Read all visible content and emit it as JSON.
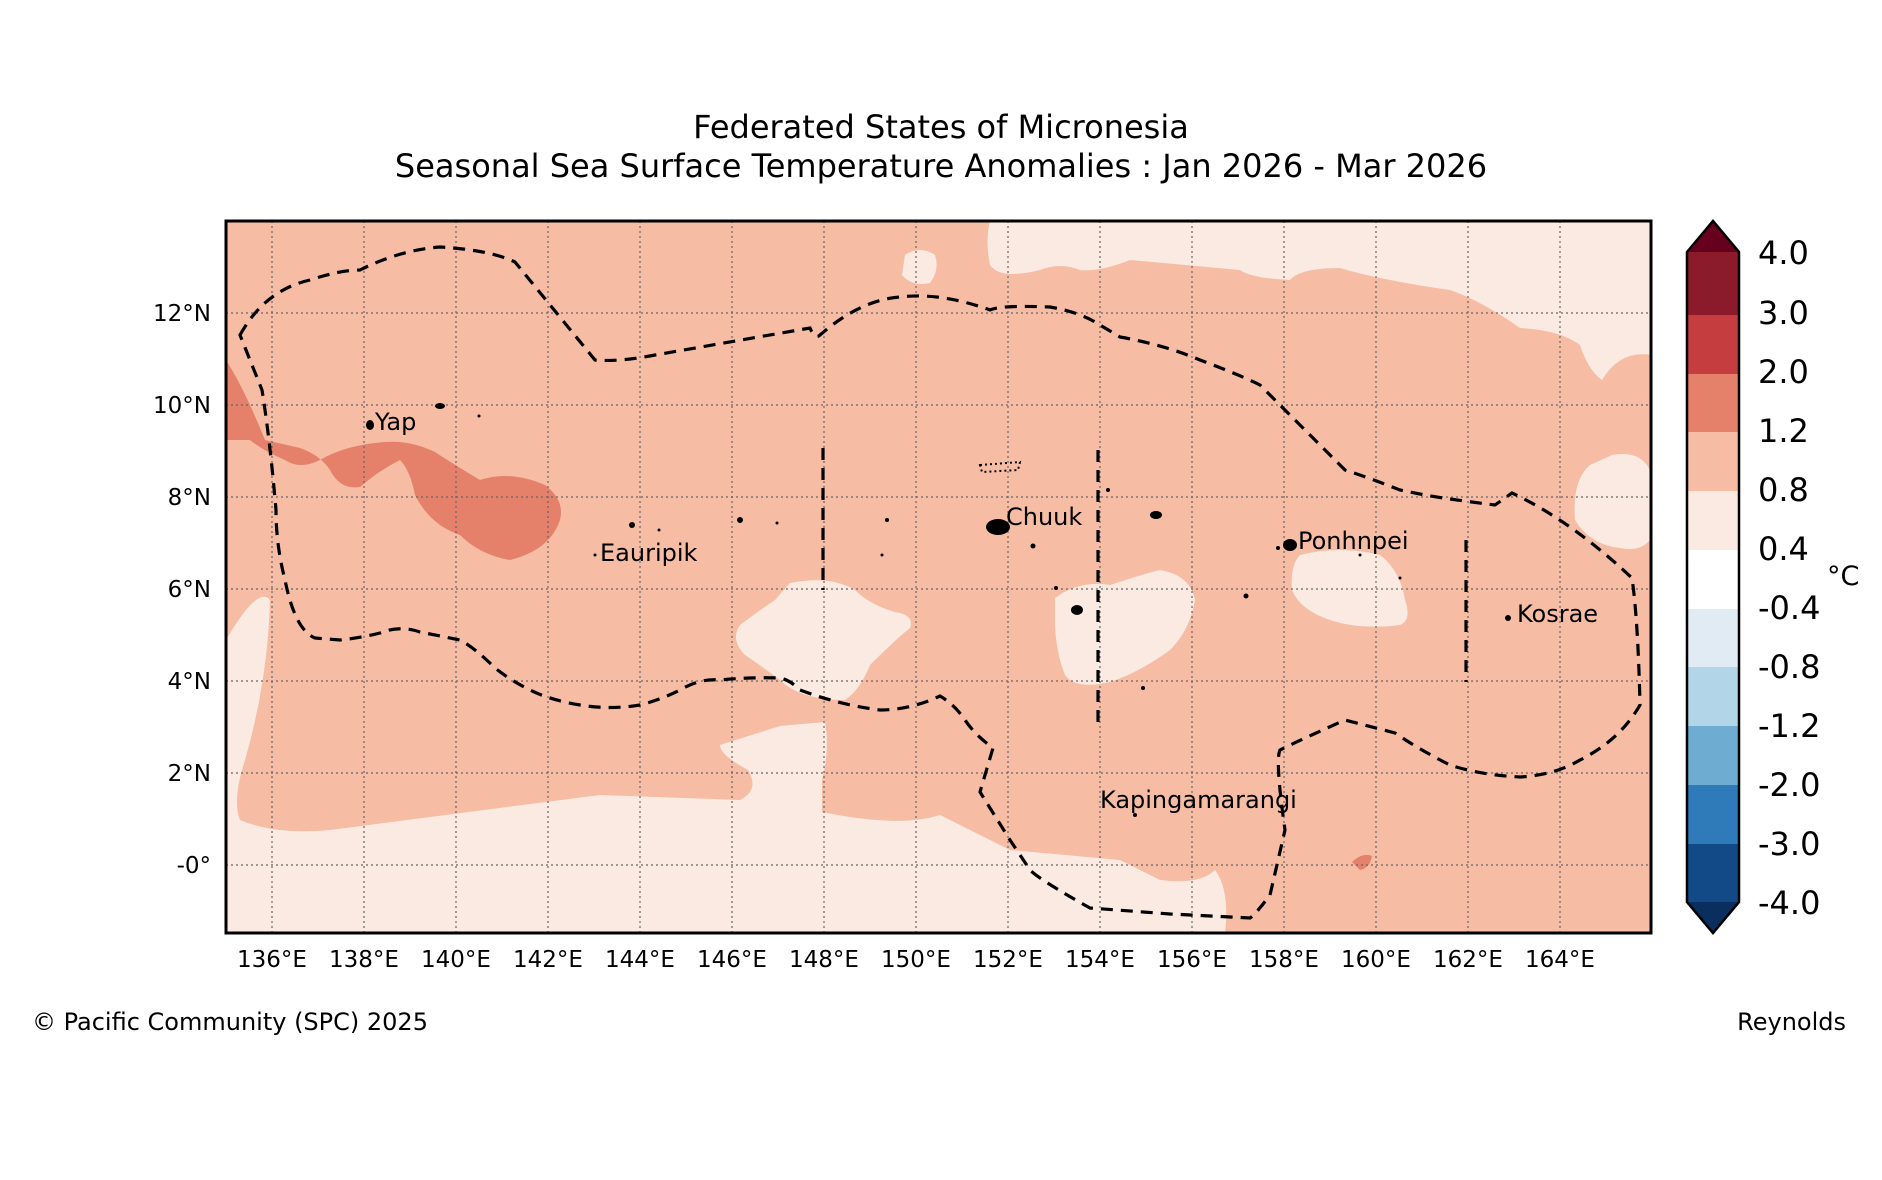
{
  "title": {
    "line1": "Federated States of Micronesia",
    "line2": "Seasonal Sea Surface Temperature Anomalies : Jan 2026 - Mar 2026"
  },
  "map": {
    "lon_ticks": [
      "136°E",
      "138°E",
      "140°E",
      "142°E",
      "144°E",
      "146°E",
      "148°E",
      "150°E",
      "152°E",
      "154°E",
      "156°E",
      "158°E",
      "160°E",
      "162°E",
      "164°E"
    ],
    "lat_ticks": [
      "12°N",
      "10°N",
      "8°N",
      "6°N",
      "4°N",
      "2°N",
      "-0°"
    ],
    "labels": {
      "yap": "Yap",
      "eauripik": "Eauripik",
      "chuuk": "Chuuk",
      "ponhnpei": "Ponhnpei",
      "kosrae": "Kosrae",
      "kapingamarangi": "Kapingamarangi"
    }
  },
  "colorbar": {
    "unit": "°C",
    "ticks": [
      "4.0",
      "3.0",
      "2.0",
      "1.2",
      "0.8",
      "0.4",
      "-0.4",
      "-0.8",
      "-1.2",
      "-2.0",
      "-3.0",
      "-4.0"
    ],
    "colors": {
      "above_max": "#67001f",
      "c_3_4": "#8b1a2b",
      "c_2_3": "#c53d3f",
      "c_12_2": "#e5816a",
      "c_08_12": "#f6bda4",
      "c_04_08": "#faeae1",
      "c_m04_04": "#ffffff",
      "c_m08_m04": "#e0ebf3",
      "c_m12_m08": "#b2d6e8",
      "c_m2_m12": "#6eacd1",
      "c_m3_m2": "#2f7ab8",
      "c_m4_m3": "#124a88",
      "below_min": "#0a2f5f"
    }
  },
  "footer": {
    "credit": "© Pacific Community (SPC) 2025",
    "source": "Reynolds"
  }
}
